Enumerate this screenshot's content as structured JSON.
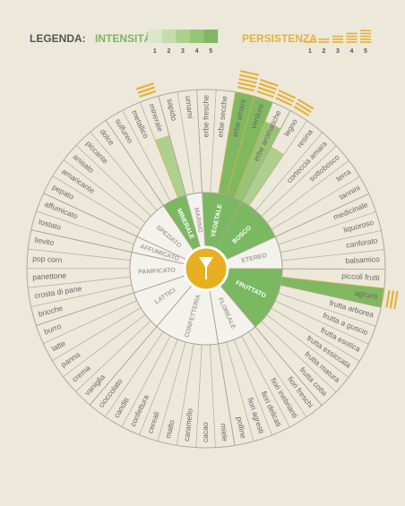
{
  "legend": {
    "title": "LEGENDA:",
    "intensity_label": "INTENSITÀ",
    "intensity_levels": [
      1,
      2,
      3,
      4,
      5
    ],
    "intensity_colors": [
      "#dbe6cb",
      "#c6dcad",
      "#aed08f",
      "#97c476",
      "#80b862"
    ],
    "persistence_label": "PERSISTENZA",
    "persistence_levels": [
      1,
      2,
      3,
      4,
      5
    ],
    "persistence_color": "#e5b23a"
  },
  "wheel": {
    "highlight_color": "#7ab862",
    "categories": [
      {
        "name": "VEGETALE",
        "highlighted": true,
        "descriptors": [
          {
            "label": "erbe fresche"
          },
          {
            "label": "erbe secche"
          },
          {
            "label": "erbe amare",
            "intensity": 5,
            "persistence": 5
          },
          {
            "label": "verdure",
            "intensity": 5,
            "persistence": 4
          },
          {
            "label": "erbe aromatiche",
            "intensity": 4,
            "persistence": 3
          }
        ]
      },
      {
        "name": "BOSCO",
        "highlighted": true,
        "descriptors": [
          {
            "label": "legno",
            "intensity": 3,
            "persistence": 3
          },
          {
            "label": "resina"
          },
          {
            "label": "corteccia amara"
          },
          {
            "label": "sottobosco"
          },
          {
            "label": "terra"
          },
          {
            "label": "tannini"
          }
        ]
      },
      {
        "name": "ETEREO",
        "highlighted": false,
        "descriptors": [
          {
            "label": "medicinale"
          },
          {
            "label": "liquoroso"
          },
          {
            "label": "canforato"
          },
          {
            "label": "balsamico"
          }
        ]
      },
      {
        "name": "FRUTTATO",
        "highlighted": true,
        "descriptors": [
          {
            "label": "piccoli frutti"
          },
          {
            "label": "agrumi",
            "intensity": 5,
            "persistence": 3
          },
          {
            "label": "frutta arborea"
          },
          {
            "label": "frutta a guscio"
          },
          {
            "label": "frutta esotica"
          },
          {
            "label": "frutta essiccata"
          },
          {
            "label": "frutta matura"
          },
          {
            "label": "frutta cotta"
          }
        ]
      },
      {
        "name": "FLOREALE",
        "highlighted": false,
        "descriptors": [
          {
            "label": "fiori freschi"
          },
          {
            "label": "fiori inebrianti"
          },
          {
            "label": "fiori delicati"
          },
          {
            "label": "fiori agresti"
          },
          {
            "label": "polline"
          }
        ]
      },
      {
        "name": "CONFETTERIA",
        "highlighted": false,
        "descriptors": [
          {
            "label": "miele"
          },
          {
            "label": "cacao"
          },
          {
            "label": "caramello"
          },
          {
            "label": "malto"
          },
          {
            "label": "cereali"
          },
          {
            "label": "confettura"
          },
          {
            "label": "canditi"
          },
          {
            "label": "cioccolato"
          }
        ]
      },
      {
        "name": "LATTICI",
        "highlighted": false,
        "descriptors": [
          {
            "label": "vaniglia"
          },
          {
            "label": "crema"
          },
          {
            "label": "panna"
          },
          {
            "label": "latte"
          },
          {
            "label": "burro"
          }
        ]
      },
      {
        "name": "PANIFICATO",
        "highlighted": false,
        "descriptors": [
          {
            "label": "brioche"
          },
          {
            "label": "crosta di pane"
          },
          {
            "label": "panettone"
          },
          {
            "label": "pop corn"
          },
          {
            "label": "lievito"
          }
        ]
      },
      {
        "name": "AFFUMICATO",
        "highlighted": false,
        "descriptors": [
          {
            "label": "tostato"
          },
          {
            "label": "affumicato"
          }
        ]
      },
      {
        "name": "SPEZIATO",
        "highlighted": false,
        "descriptors": [
          {
            "label": "pepato"
          },
          {
            "label": "amaricante"
          },
          {
            "label": "anisato"
          },
          {
            "label": "piccante"
          },
          {
            "label": "dolce"
          }
        ]
      },
      {
        "name": "MINERALE",
        "highlighted": true,
        "descriptors": [
          {
            "label": "sulfureo"
          },
          {
            "label": "metallico"
          },
          {
            "label": "minerale",
            "intensity": 3,
            "persistence": 3
          }
        ]
      },
      {
        "name": "MARINO",
        "highlighted": false,
        "descriptors": [
          {
            "label": "sapido"
          },
          {
            "label": "umami"
          }
        ]
      }
    ]
  }
}
